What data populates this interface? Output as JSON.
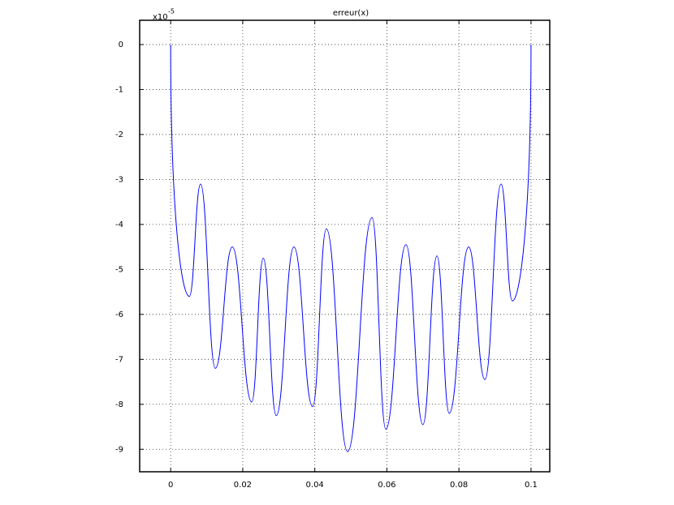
{
  "chart_data": {
    "type": "line",
    "title": "erreur(x)",
    "y_scale_base": "x10",
    "y_scale_exponent": "-5",
    "x": [
      0,
      0.0052,
      0.0083,
      0.0124,
      0.0171,
      0.0225,
      0.0257,
      0.0293,
      0.0342,
      0.0394,
      0.0432,
      0.0491,
      0.0559,
      0.0597,
      0.0653,
      0.07,
      0.0739,
      0.0773,
      0.0827,
      0.0872,
      0.0917,
      0.0948,
      0.1
    ],
    "values": [
      0,
      -5.6,
      -3.1,
      -7.2,
      -4.5,
      -7.95,
      -4.75,
      -8.25,
      -4.5,
      -8.05,
      -4.1,
      -9.05,
      -3.85,
      -8.55,
      -4.45,
      -8.45,
      -4.7,
      -8.2,
      -4.5,
      -7.45,
      -3.1,
      -5.7,
      0
    ],
    "color": "#0000ff",
    "xlim": [
      -0.0086,
      0.1052
    ],
    "xticks": [
      0,
      0.02,
      0.04,
      0.06,
      0.08,
      0.1
    ],
    "ylim": [
      -9.5,
      0.54
    ],
    "yticks": [
      0,
      -1,
      -2,
      -3,
      -4,
      -5,
      -6,
      -7,
      -8,
      -9
    ],
    "grid": true
  }
}
